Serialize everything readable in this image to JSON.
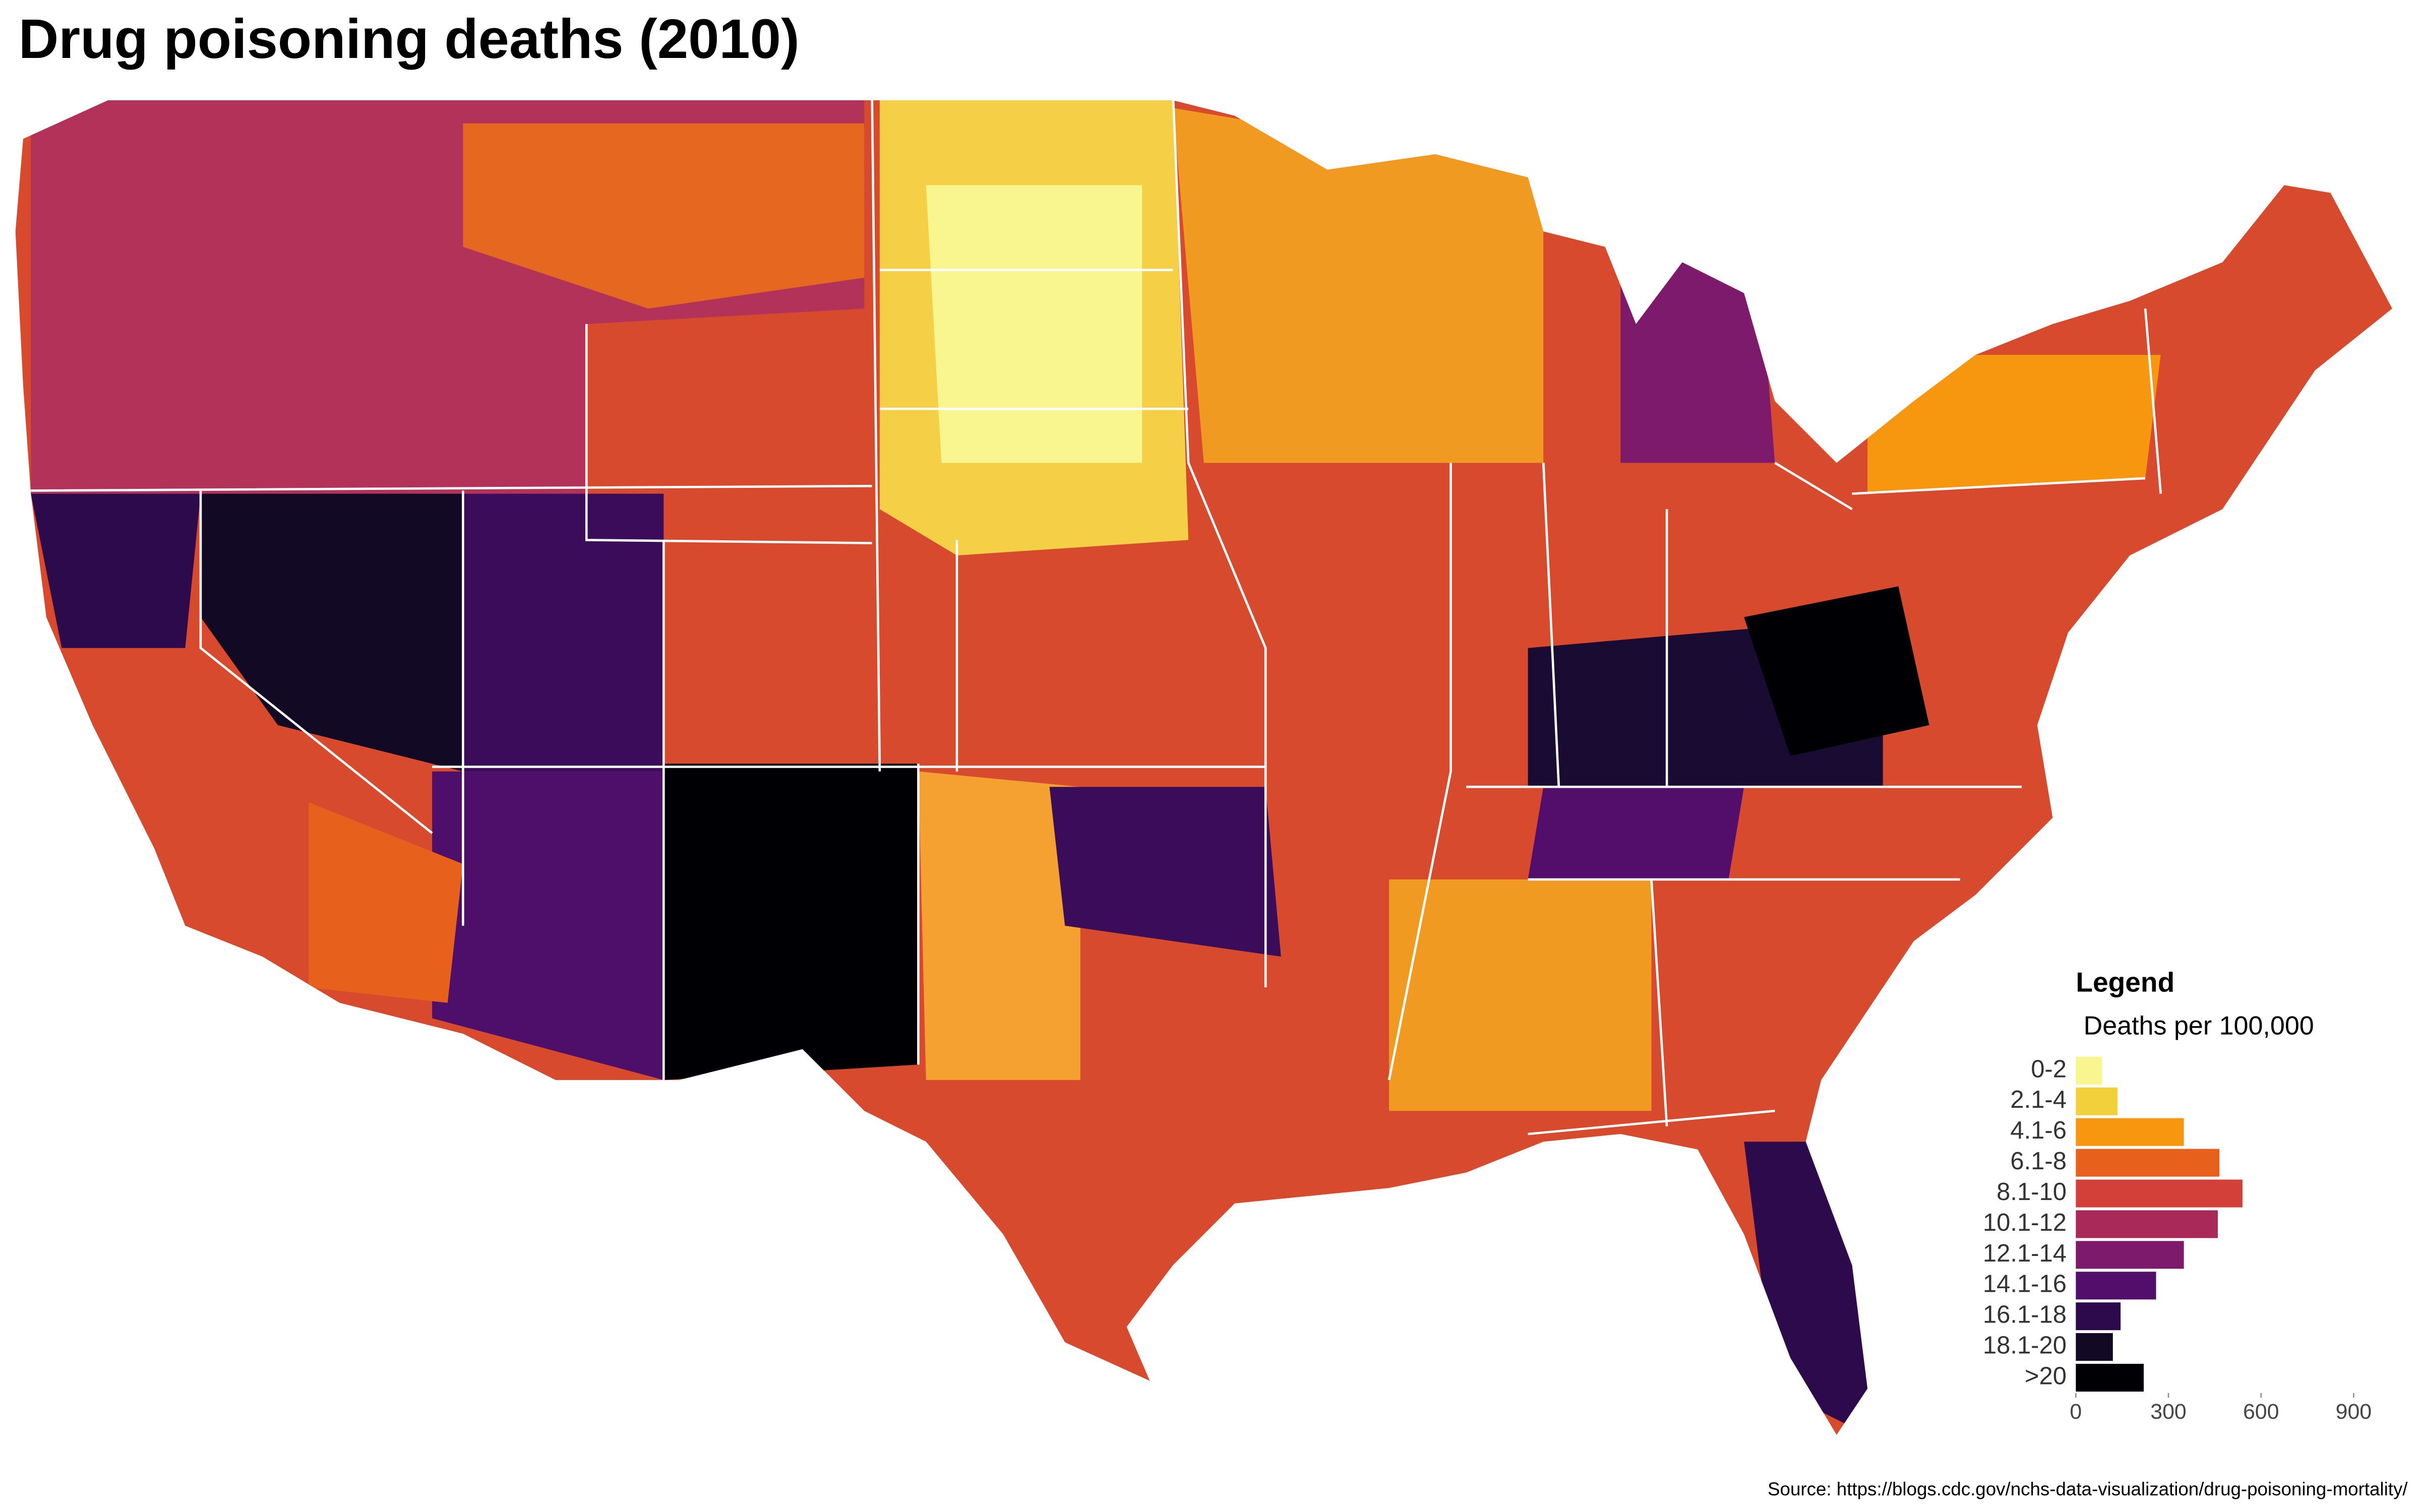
{
  "title": "Drug poisoning deaths (2010)",
  "source": "Source: https://blogs.cdc.gov/nchs-data-visualization/drug-poisoning-mortality/",
  "chart_data": {
    "type": "bar",
    "orientation": "horizontal",
    "legend_title": "Legend",
    "legend_subtitle": "Deaths per 100,000",
    "categories": [
      "0-2",
      "2.1-4",
      "4.1-6",
      "6.1-8",
      "8.1-10",
      "10.1-12",
      "12.1-14",
      "14.1-16",
      "16.1-18",
      "18.1-20",
      ">20"
    ],
    "values": [
      85,
      135,
      350,
      465,
      540,
      460,
      350,
      260,
      145,
      120,
      220
    ],
    "colors": [
      "#f9f58f",
      "#f2d03c",
      "#f7970f",
      "#e8611c",
      "#d3403a",
      "#a92a58",
      "#7d1a6b",
      "#530e6b",
      "#2c0a4c",
      "#120a24",
      "#000004"
    ],
    "xlim": [
      0,
      1000
    ],
    "xticks": [
      0,
      300,
      600,
      900
    ]
  }
}
